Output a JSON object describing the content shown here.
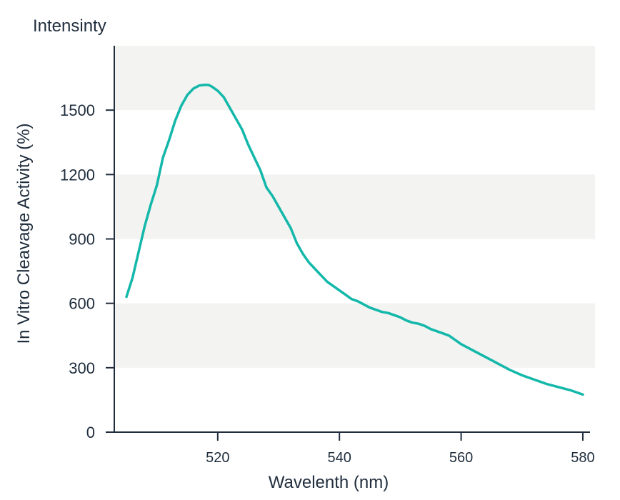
{
  "chart_data": {
    "type": "line",
    "title": "",
    "corner_label": "Intensinty",
    "xlabel": "Wavelenth (nm)",
    "ylabel": "In Vitro Cleavage Activity (%)",
    "xlim": [
      503,
      582
    ],
    "ylim": [
      0,
      1800
    ],
    "xticks": [
      520,
      540,
      560,
      580
    ],
    "yticks": [
      0,
      300,
      600,
      900,
      1200,
      1500
    ],
    "grid": "alternating horizontal bands",
    "colors": {
      "line": "#13b8aa",
      "band": "#f3f3f1",
      "axis": "#1f2d3d"
    },
    "series": [
      {
        "x": [
          505,
          506,
          507,
          508,
          509,
          510,
          511,
          512,
          513,
          514,
          515,
          516,
          517,
          518,
          518.5,
          519,
          520,
          521,
          522,
          523,
          524,
          525,
          526,
          527,
          528,
          529,
          530,
          531,
          532,
          533,
          534,
          535,
          536,
          537,
          538,
          539,
          540,
          541,
          542,
          543,
          544,
          545,
          546,
          547,
          548,
          549,
          550,
          551,
          552,
          553,
          554,
          555,
          556,
          557,
          558,
          559,
          560,
          562,
          564,
          566,
          568,
          570,
          572,
          574,
          576,
          578,
          580
        ],
        "y": [
          630,
          720,
          840,
          960,
          1060,
          1150,
          1280,
          1360,
          1450,
          1520,
          1570,
          1600,
          1615,
          1618,
          1617,
          1610,
          1590,
          1560,
          1510,
          1460,
          1410,
          1340,
          1280,
          1220,
          1140,
          1100,
          1050,
          1000,
          950,
          880,
          830,
          790,
          760,
          730,
          700,
          680,
          660,
          640,
          620,
          610,
          595,
          580,
          570,
          560,
          555,
          545,
          535,
          520,
          510,
          505,
          495,
          480,
          470,
          460,
          450,
          430,
          410,
          380,
          350,
          320,
          290,
          265,
          245,
          225,
          210,
          195,
          175
        ]
      }
    ]
  }
}
